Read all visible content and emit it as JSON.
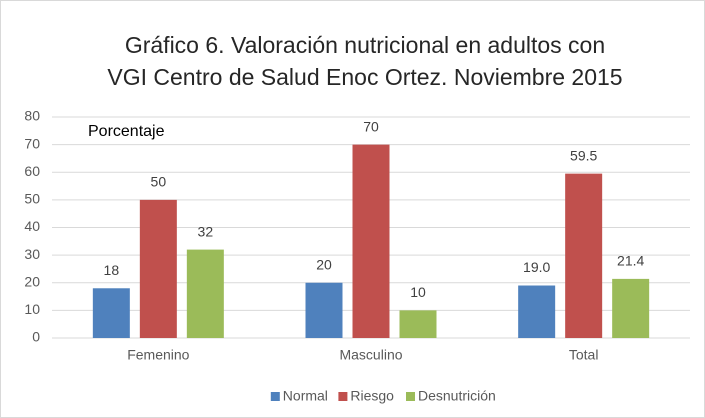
{
  "chart_data": {
    "type": "bar",
    "title": [
      "Gráfico 6. Valoración nutricional en adultos con",
      "VGI Centro de Salud Enoc Ortez. Noviembre 2015"
    ],
    "annotation": "Porcentaje",
    "categories": [
      "Femenino",
      "Masculino",
      "Total"
    ],
    "series": [
      {
        "name": "Normal",
        "color": "#4f81bd",
        "values": [
          18,
          20,
          19.0
        ],
        "value_labels": [
          "18",
          "20",
          "19.0"
        ]
      },
      {
        "name": "Riesgo",
        "color": "#c0504d",
        "values": [
          50,
          70,
          59.5
        ]
      },
      {
        "name": "Desnutrición",
        "color": "#9bbb59",
        "values": [
          32,
          10,
          21.4
        ]
      }
    ],
    "ylim": [
      0,
      80
    ],
    "yticks": [
      0,
      10,
      20,
      30,
      40,
      50,
      60,
      70,
      80
    ],
    "grid": true,
    "legend": "bottom"
  }
}
